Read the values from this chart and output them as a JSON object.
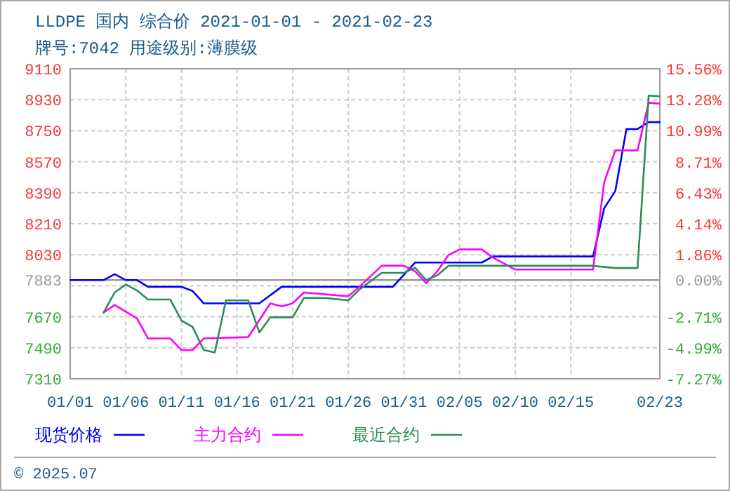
{
  "chart_data": {
    "type": "line",
    "title": "LLDPE 国内 综合价 2021-01-01 - 2021-02-23",
    "subtitle": "牌号:7042 用途级别:薄膜级",
    "annotations": [
      "© 2025.07"
    ],
    "xlim": [
      "2021-01-01",
      "2021-02-23"
    ],
    "xticks": [
      {
        "value": "2021-01-01",
        "label": "01/01"
      },
      {
        "value": "2021-01-06",
        "label": "01/06"
      },
      {
        "value": "2021-01-11",
        "label": "01/11"
      },
      {
        "value": "2021-01-16",
        "label": "01/16"
      },
      {
        "value": "2021-01-21",
        "label": "01/21"
      },
      {
        "value": "2021-01-26",
        "label": "01/26"
      },
      {
        "value": "2021-01-31",
        "label": "01/31"
      },
      {
        "value": "2021-02-05",
        "label": "02/05"
      },
      {
        "value": "2021-02-10",
        "label": "02/10"
      },
      {
        "value": "2021-02-15",
        "label": "02/15"
      },
      {
        "value": "2021-02-23",
        "label": "02/23"
      }
    ],
    "ylim": [
      7310,
      9110
    ],
    "yticks": [
      7310,
      7490,
      7670,
      {
        "value": 7850,
        "label": null
      },
      7883,
      8030,
      8210,
      8390,
      8570,
      8750,
      8930,
      9110
    ],
    "y2lim": [
      -7.27,
      15.56
    ],
    "y2ticks": [
      {
        "value": -7.27,
        "label": "-7.27%"
      },
      {
        "value": -4.99,
        "label": "-4.99%"
      },
      {
        "value": -2.71,
        "label": "-2.71%"
      },
      {
        "value": 0,
        "label": "0.00%"
      },
      {
        "value": 1.86,
        "label": "1.86%"
      },
      {
        "value": 4.14,
        "label": "4.14%"
      },
      {
        "value": 6.43,
        "label": "6.43%"
      },
      {
        "value": 8.71,
        "label": "8.71%"
      },
      {
        "value": 10.99,
        "label": "10.99%"
      },
      {
        "value": 13.28,
        "label": "13.28%"
      },
      {
        "value": 15.56,
        "label": "15.56%"
      }
    ],
    "ref_lines": [
      {
        "axis": "y",
        "value": 7883,
        "color": "#999999"
      }
    ],
    "grid": true,
    "legend": "bottom",
    "line_style": "solid",
    "series": [
      {
        "name": "现货价格",
        "color": "#0000ff",
        "x": [
          "2021-01-01",
          "2021-01-04",
          "2021-01-05",
          "2021-01-06",
          "2021-01-07",
          "2021-01-08",
          "2021-01-11",
          "2021-01-12",
          "2021-01-13",
          "2021-01-18",
          "2021-01-20",
          "2021-01-30",
          "2021-02-01",
          "2021-02-07",
          "2021-02-08",
          "2021-02-17",
          "2021-02-18",
          "2021-02-19",
          "2021-02-20",
          "2021-02-21",
          "2021-02-22",
          "2021-02-23"
        ],
        "values": [
          7883,
          7883,
          7917,
          7883,
          7883,
          7844,
          7844,
          7820,
          7748,
          7748,
          7844,
          7844,
          7985,
          7985,
          8020,
          8020,
          8300,
          8400,
          8760,
          8760,
          8800,
          8800
        ]
      },
      {
        "name": "主力合约",
        "color": "#ff00ff",
        "x": [
          "2021-01-04",
          "2021-01-05",
          "2021-01-07",
          "2021-01-08",
          "2021-01-10",
          "2021-01-11",
          "2021-01-12",
          "2021-01-13",
          "2021-01-17",
          "2021-01-19",
          "2021-01-20",
          "2021-01-21",
          "2021-01-22",
          "2021-01-26",
          "2021-01-27",
          "2021-01-29",
          "2021-01-31",
          "2021-02-01",
          "2021-02-02",
          "2021-02-03",
          "2021-02-04",
          "2021-02-05",
          "2021-02-07",
          "2021-02-08",
          "2021-02-10",
          "2021-02-17",
          "2021-02-18",
          "2021-02-19",
          "2021-02-21",
          "2021-02-22",
          "2021-02-23"
        ],
        "values": [
          7694,
          7738,
          7661,
          7544,
          7544,
          7477,
          7477,
          7544,
          7552,
          7748,
          7730,
          7748,
          7811,
          7789,
          7844,
          7966,
          7966,
          7934,
          7865,
          7934,
          8028,
          8061,
          8061,
          8014,
          7944,
          7944,
          8450,
          8636,
          8636,
          8913,
          8907
        ]
      },
      {
        "name": "最近合约",
        "color": "#2e8b57",
        "x": [
          "2021-01-04",
          "2021-01-05",
          "2021-01-06",
          "2021-01-07",
          "2021-01-08",
          "2021-01-10",
          "2021-01-11",
          "2021-01-12",
          "2021-01-13",
          "2021-01-14",
          "2021-01-15",
          "2021-01-17",
          "2021-01-18",
          "2021-01-19",
          "2021-01-21",
          "2021-01-22",
          "2021-01-24",
          "2021-01-26",
          "2021-01-27",
          "2021-01-29",
          "2021-01-31",
          "2021-02-01",
          "2021-02-02",
          "2021-02-03",
          "2021-02-04",
          "2021-02-17",
          "2021-02-19",
          "2021-02-21",
          "2021-02-22",
          "2021-02-23"
        ],
        "values": [
          7694,
          7811,
          7857,
          7823,
          7770,
          7770,
          7648,
          7612,
          7477,
          7463,
          7765,
          7765,
          7579,
          7667,
          7667,
          7779,
          7779,
          7765,
          7828,
          7925,
          7925,
          7955,
          7883,
          7911,
          7966,
          7966,
          7953,
          7953,
          8954,
          8950
        ]
      }
    ]
  }
}
